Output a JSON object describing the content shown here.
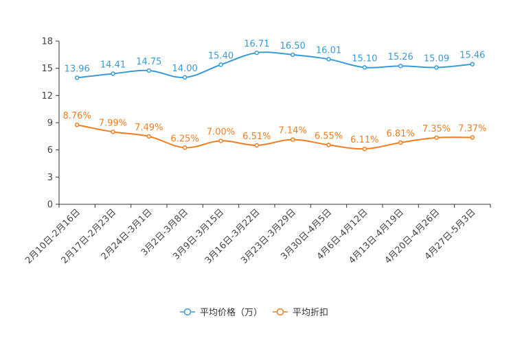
{
  "chart_data": {
    "type": "line",
    "title": "",
    "xlabel": "",
    "ylabel": "",
    "ylim": [
      0,
      18
    ],
    "yticks": [
      0,
      3,
      6,
      9,
      12,
      15,
      18
    ],
    "grid": false,
    "legend_position": "bottom-center",
    "categories": [
      "2月10日-2月16日",
      "2月17日-2月23日",
      "2月24日-3月1日",
      "3月2日-3月8日",
      "3月9日-3月15日",
      "3月16日-3月22日",
      "3月23日-3月29日",
      "3月30日-4月5日",
      "4月6日-4月12日",
      "4月13日-4月19日",
      "4月20日-4月26日",
      "4月27日-5月3日"
    ],
    "series": [
      {
        "name": "平均价格（万）",
        "color": "#3a9ad6",
        "values": [
          13.96,
          14.41,
          14.75,
          14.0,
          15.4,
          16.71,
          16.5,
          16.01,
          15.1,
          15.26,
          15.09,
          15.46
        ],
        "labels": [
          "13.96",
          "14.41",
          "14.75",
          "14.00",
          "15.40",
          "16.71",
          "16.50",
          "16.01",
          "15.10",
          "15.26",
          "15.09",
          "15.46"
        ]
      },
      {
        "name": "平均折扣",
        "color": "#f57c1f",
        "values": [
          8.76,
          7.99,
          7.49,
          6.25,
          7.0,
          6.51,
          7.14,
          6.55,
          6.11,
          6.81,
          7.35,
          7.37
        ],
        "labels": [
          "8.76%",
          "7.99%",
          "7.49%",
          "6.25%",
          "7.00%",
          "6.51%",
          "7.14%",
          "6.55%",
          "6.11%",
          "6.81%",
          "7.35%",
          "7.37%"
        ]
      }
    ]
  }
}
